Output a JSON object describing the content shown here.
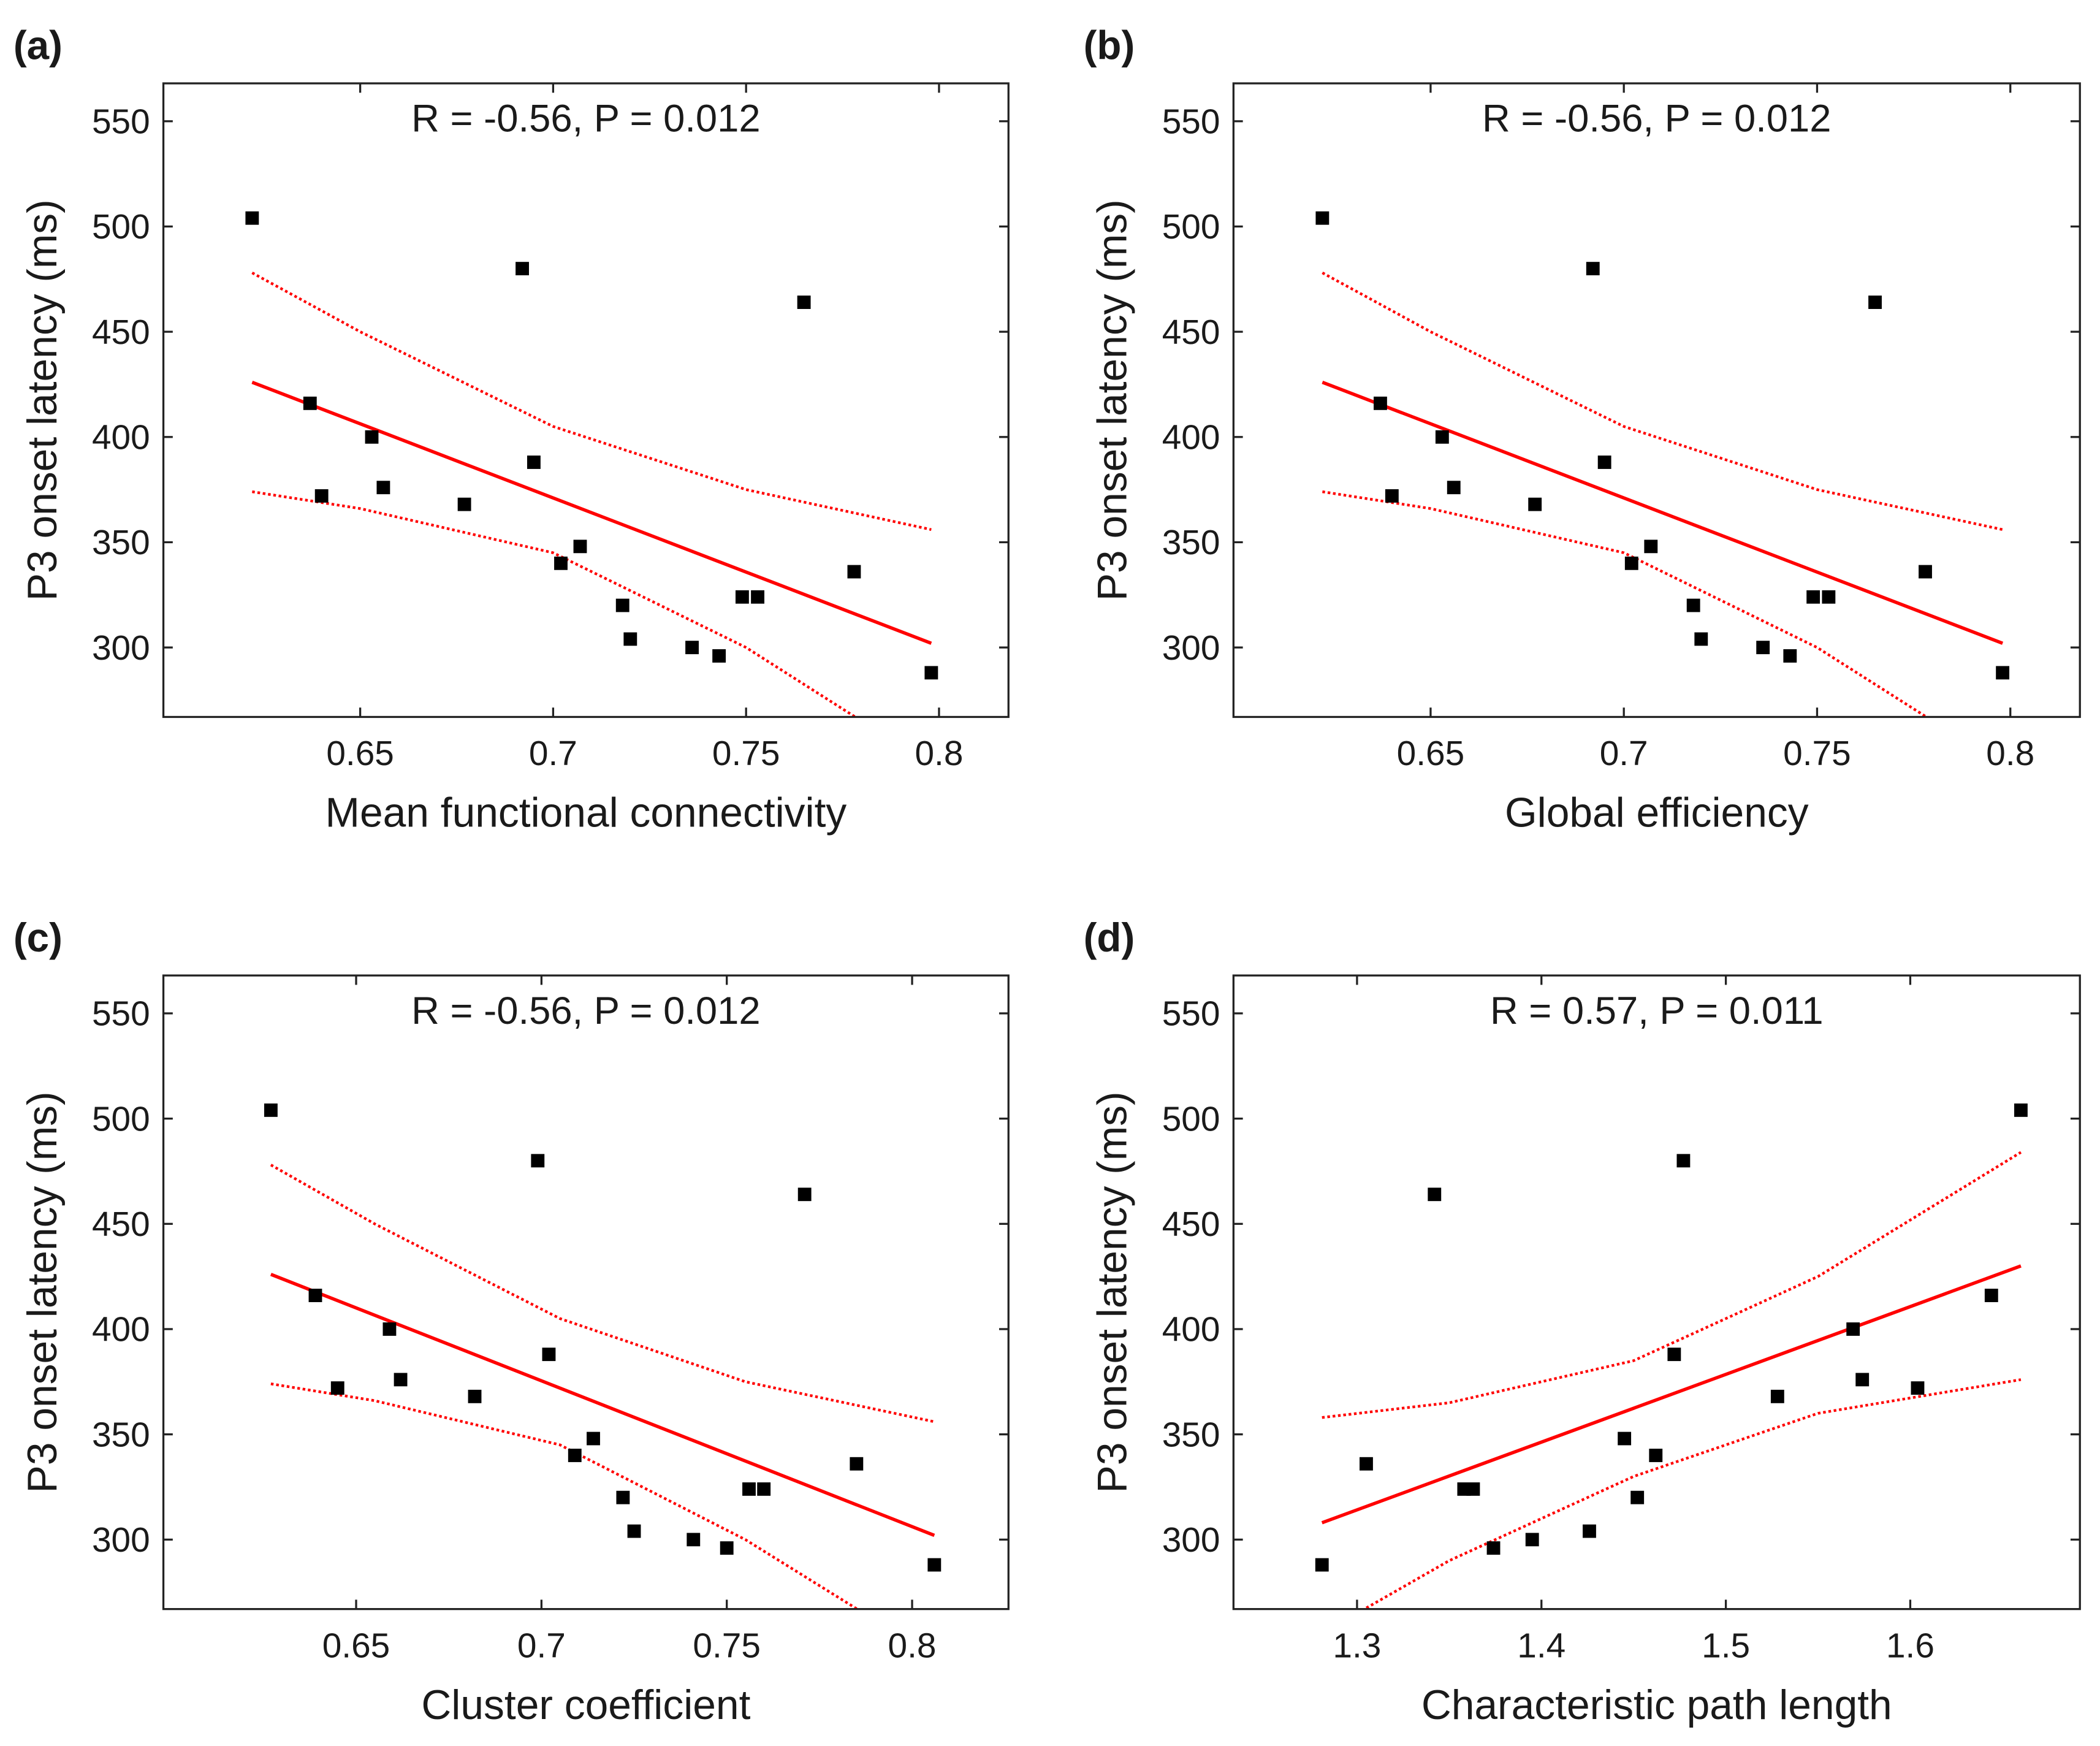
{
  "chart_data": [
    {
      "type": "scatter",
      "panel": "(a)",
      "annotation": "R = -0.56, P = 0.012",
      "xlabel": "Mean functional connectivity",
      "ylabel": "P3 onset latency (ms)",
      "xlim": [
        0.599,
        0.818
      ],
      "ylim": [
        267,
        568
      ],
      "xticks": [
        0.65,
        0.7,
        0.75,
        0.8
      ],
      "yticks": [
        300,
        350,
        400,
        450,
        500,
        550
      ],
      "point_color": "#000000",
      "line_color": "#ff0000",
      "points": {
        "x": [
          0.622,
          0.637,
          0.64,
          0.653,
          0.656,
          0.677,
          0.692,
          0.695,
          0.702,
          0.707,
          0.718,
          0.72,
          0.736,
          0.743,
          0.749,
          0.753,
          0.765,
          0.778,
          0.798
        ],
        "y": [
          504,
          416,
          372,
          400,
          376,
          368,
          480,
          388,
          340,
          348,
          320,
          304,
          300,
          296,
          324,
          324,
          464,
          336,
          288
        ]
      },
      "fit": {
        "x": [
          0.622,
          0.798
        ],
        "y": [
          426,
          302
        ]
      },
      "ci_upper": {
        "x": [
          0.622,
          0.65,
          0.7,
          0.75,
          0.798
        ],
        "y": [
          478,
          450,
          405,
          375,
          356
        ]
      },
      "ci_lower": {
        "x": [
          0.622,
          0.65,
          0.7,
          0.75,
          0.78
        ],
        "y": [
          374,
          366,
          345,
          300,
          265
        ]
      }
    },
    {
      "type": "scatter",
      "panel": "(b)",
      "annotation": "R = -0.56, P = 0.012",
      "xlabel": "Global efficiency",
      "ylabel": "P3 onset latency (ms)",
      "xlim": [
        0.599,
        0.818
      ],
      "ylim": [
        267,
        568
      ],
      "xticks": [
        0.65,
        0.7,
        0.75,
        0.8
      ],
      "yticks": [
        300,
        350,
        400,
        450,
        500,
        550
      ],
      "point_color": "#000000",
      "line_color": "#ff0000",
      "points": {
        "x": [
          0.622,
          0.637,
          0.64,
          0.653,
          0.656,
          0.677,
          0.692,
          0.695,
          0.702,
          0.707,
          0.718,
          0.72,
          0.736,
          0.743,
          0.749,
          0.753,
          0.765,
          0.778,
          0.798
        ],
        "y": [
          504,
          416,
          372,
          400,
          376,
          368,
          480,
          388,
          340,
          348,
          320,
          304,
          300,
          296,
          324,
          324,
          464,
          336,
          288
        ]
      },
      "fit": {
        "x": [
          0.622,
          0.798
        ],
        "y": [
          426,
          302
        ]
      },
      "ci_upper": {
        "x": [
          0.622,
          0.65,
          0.7,
          0.75,
          0.798
        ],
        "y": [
          478,
          450,
          405,
          375,
          356
        ]
      },
      "ci_lower": {
        "x": [
          0.622,
          0.65,
          0.7,
          0.75,
          0.78
        ],
        "y": [
          374,
          366,
          345,
          300,
          265
        ]
      }
    },
    {
      "type": "scatter",
      "panel": "(c)",
      "annotation": "R = -0.56, P = 0.012",
      "xlabel": "Cluster coefficient",
      "ylabel": "P3 onset latency (ms)",
      "xlim": [
        0.598,
        0.826
      ],
      "ylim": [
        267,
        568
      ],
      "xticks": [
        0.65,
        0.7,
        0.75,
        0.8
      ],
      "yticks": [
        300,
        350,
        400,
        450,
        500,
        550
      ],
      "point_color": "#000000",
      "line_color": "#ff0000",
      "points": {
        "x": [
          0.627,
          0.639,
          0.645,
          0.659,
          0.662,
          0.682,
          0.699,
          0.702,
          0.709,
          0.714,
          0.722,
          0.725,
          0.741,
          0.75,
          0.756,
          0.76,
          0.771,
          0.785,
          0.806
        ],
        "y": [
          504,
          416,
          372,
          400,
          376,
          368,
          480,
          388,
          340,
          348,
          320,
          304,
          300,
          296,
          324,
          324,
          464,
          336,
          288
        ]
      },
      "fit": {
        "x": [
          0.627,
          0.806
        ],
        "y": [
          426,
          302
        ]
      },
      "ci_upper": {
        "x": [
          0.627,
          0.655,
          0.705,
          0.755,
          0.806
        ],
        "y": [
          478,
          450,
          405,
          375,
          356
        ]
      },
      "ci_lower": {
        "x": [
          0.627,
          0.655,
          0.705,
          0.755,
          0.787
        ],
        "y": [
          374,
          366,
          345,
          300,
          265
        ]
      }
    },
    {
      "type": "scatter",
      "panel": "(d)",
      "annotation": "R = 0.57, P = 0.011",
      "xlabel": "Characteristic path length",
      "ylabel": "P3 onset latency (ms)",
      "xlim": [
        1.233,
        1.692
      ],
      "ylim": [
        267,
        568
      ],
      "xticks": [
        1.3,
        1.4,
        1.5,
        1.6
      ],
      "yticks": [
        300,
        350,
        400,
        450,
        500,
        550
      ],
      "point_color": "#000000",
      "line_color": "#ff0000",
      "points": {
        "x": [
          1.281,
          1.305,
          1.342,
          1.358,
          1.363,
          1.374,
          1.395,
          1.426,
          1.445,
          1.452,
          1.462,
          1.472,
          1.477,
          1.528,
          1.569,
          1.574,
          1.604,
          1.644,
          1.66
        ],
        "y": [
          288,
          336,
          464,
          324,
          324,
          296,
          300,
          304,
          348,
          320,
          340,
          388,
          480,
          368,
          400,
          376,
          372,
          416,
          504
        ]
      },
      "fit": {
        "x": [
          1.281,
          1.66
        ],
        "y": [
          308,
          430
        ]
      },
      "ci_upper": {
        "x": [
          1.281,
          1.35,
          1.45,
          1.55,
          1.66
        ],
        "y": [
          358,
          365,
          385,
          425,
          484
        ]
      },
      "ci_lower": {
        "x": [
          1.3,
          1.35,
          1.45,
          1.55,
          1.66
        ],
        "y": [
          265,
          290,
          330,
          360,
          376
        ]
      }
    }
  ]
}
